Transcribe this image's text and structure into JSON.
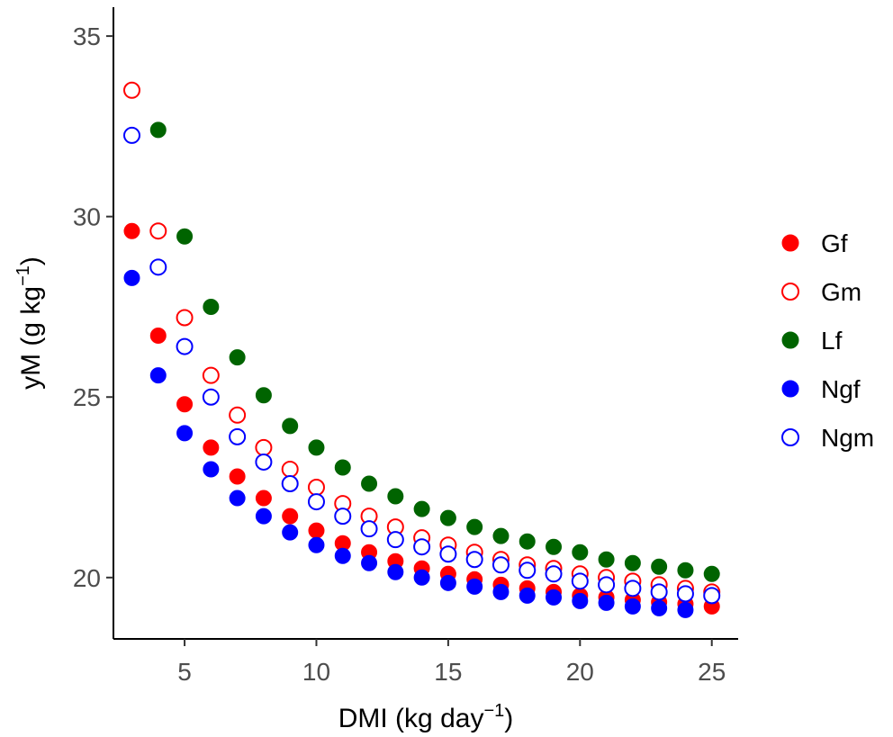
{
  "chart_data": {
    "type": "scatter",
    "xlabel": {
      "main": "DMI (kg day",
      "sup": "−1",
      "close": ")"
    },
    "ylabel": {
      "main": "yM (g kg",
      "sup": "−1",
      "close": ")"
    },
    "xlim": [
      2.3,
      26
    ],
    "ylim": [
      18.3,
      35.8
    ],
    "xticks": [
      5,
      10,
      15,
      20,
      25
    ],
    "yticks": [
      20,
      25,
      30,
      35
    ],
    "grid": false,
    "legend_position": "right",
    "x": [
      3,
      4,
      5,
      6,
      7,
      8,
      9,
      10,
      11,
      12,
      13,
      14,
      15,
      16,
      17,
      18,
      19,
      20,
      21,
      22,
      23,
      24,
      25
    ],
    "series": [
      {
        "name": "Gf",
        "color": "#ff0000",
        "filled": true,
        "values": [
          29.6,
          26.7,
          24.8,
          23.6,
          22.8,
          22.2,
          21.7,
          21.3,
          20.95,
          20.7,
          20.45,
          20.25,
          20.1,
          19.95,
          19.8,
          19.7,
          19.6,
          19.5,
          19.45,
          19.38,
          19.32,
          19.27,
          19.2
        ]
      },
      {
        "name": "Gm",
        "color": "#ff0000",
        "filled": false,
        "values": [
          33.5,
          29.6,
          27.2,
          25.6,
          24.5,
          23.6,
          23.0,
          22.5,
          22.05,
          21.7,
          21.4,
          21.1,
          20.9,
          20.7,
          20.5,
          20.35,
          20.25,
          20.1,
          20.0,
          19.9,
          19.8,
          19.7,
          19.6
        ]
      },
      {
        "name": "Lf",
        "color": "#006400",
        "filled": true,
        "values": [
          32.4,
          null,
          29.45,
          27.5,
          26.1,
          25.05,
          24.2,
          23.6,
          23.05,
          22.6,
          22.25,
          21.9,
          21.65,
          21.4,
          21.15,
          21.0,
          20.85,
          20.7,
          20.5,
          20.4,
          20.3,
          20.2,
          20.1
        ]
      },
      {
        "name": "Ngf",
        "color": "#0000ff",
        "filled": true,
        "values": [
          28.3,
          25.6,
          24.0,
          23.0,
          22.2,
          21.7,
          21.25,
          20.9,
          20.6,
          20.4,
          20.15,
          20.0,
          19.85,
          19.75,
          19.6,
          19.5,
          19.45,
          19.35,
          19.3,
          19.2,
          19.15,
          19.1,
          null
        ]
      },
      {
        "name": "Ngm",
        "color": "#0000ff",
        "filled": false,
        "values": [
          32.25,
          28.6,
          26.4,
          25.0,
          23.9,
          23.2,
          22.6,
          22.1,
          21.7,
          21.35,
          21.05,
          20.85,
          20.65,
          20.5,
          20.35,
          20.2,
          20.1,
          19.9,
          19.8,
          19.7,
          19.6,
          19.55,
          19.5
        ]
      }
    ],
    "lf_x4_shift": 4
  }
}
